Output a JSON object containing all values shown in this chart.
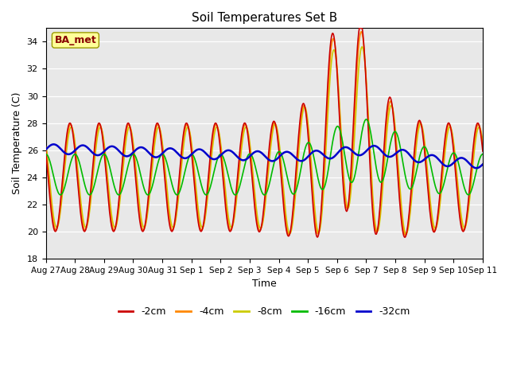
{
  "title": "Soil Temperatures Set B",
  "xlabel": "Time",
  "ylabel": "Soil Temperature (C)",
  "ylim": [
    18,
    35
  ],
  "yticks": [
    18,
    20,
    22,
    24,
    26,
    28,
    30,
    32,
    34
  ],
  "plot_bg_color": "#e8e8e8",
  "legend_labels": [
    "-2cm",
    "-4cm",
    "-8cm",
    "-16cm",
    "-32cm"
  ],
  "legend_colors": [
    "#cc0000",
    "#ff8800",
    "#cccc00",
    "#00bb00",
    "#0000cc"
  ],
  "annotation_text": "BA_met",
  "annotation_box_color": "#ffff99",
  "annotation_text_color": "#880000",
  "xtick_labels": [
    "Aug 27",
    "Aug 28",
    "Aug 29",
    "Aug 30",
    "Aug 31",
    "Sep 1",
    "Sep 2",
    "Sep 3",
    "Sep 4",
    "Sep 5",
    "Sep 6",
    "Sep 7",
    "Sep 8",
    "Sep 9",
    "Sep 10",
    "Sep 11"
  ],
  "num_days": 15,
  "samples_per_day": 48
}
